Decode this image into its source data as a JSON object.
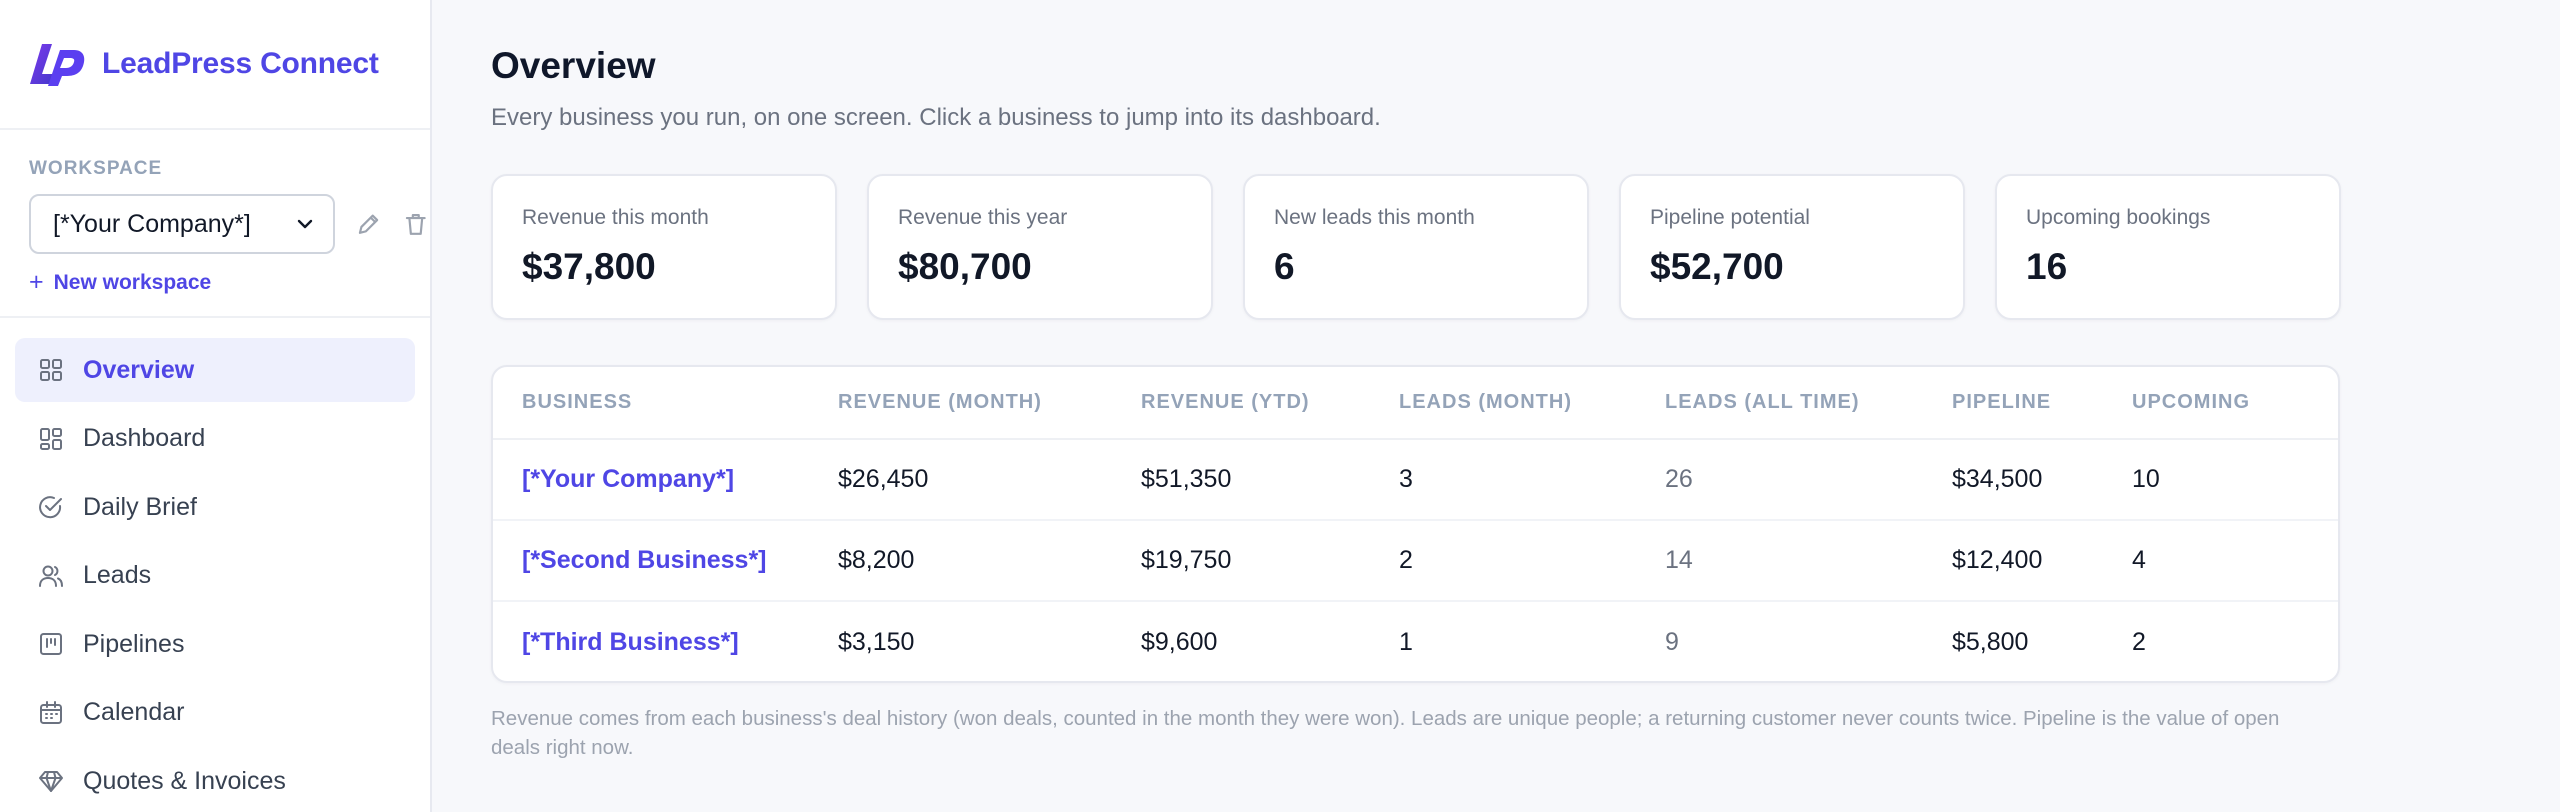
{
  "brand": {
    "name": "LeadPress Connect"
  },
  "workspace": {
    "label": "WORKSPACE",
    "selected": "[*Your Company*]",
    "new_label": "New workspace"
  },
  "nav": {
    "items": [
      {
        "label": "Overview",
        "icon": "grid-icon",
        "active": true
      },
      {
        "label": "Dashboard",
        "icon": "dashboard-icon"
      },
      {
        "label": "Daily Brief",
        "icon": "check-circle-icon"
      },
      {
        "label": "Leads",
        "icon": "users-icon"
      },
      {
        "label": "Pipelines",
        "icon": "kanban-icon"
      },
      {
        "label": "Calendar",
        "icon": "calendar-icon"
      },
      {
        "label": "Quotes & Invoices",
        "icon": "gem-icon"
      }
    ]
  },
  "page": {
    "title": "Overview",
    "subtitle": "Every business you run, on one screen. Click a business to jump into its dashboard."
  },
  "stats": [
    {
      "label": "Revenue this month",
      "value": "$37,800"
    },
    {
      "label": "Revenue this year",
      "value": "$80,700"
    },
    {
      "label": "New leads this month",
      "value": "6"
    },
    {
      "label": "Pipeline potential",
      "value": "$52,700"
    },
    {
      "label": "Upcoming bookings",
      "value": "16"
    }
  ],
  "table": {
    "columns": [
      "Business",
      "Revenue (month)",
      "Revenue (YTD)",
      "Leads (month)",
      "Leads (all time)",
      "Pipeline",
      "Upcoming"
    ],
    "rows": [
      [
        "[*Your Company*]",
        "$26,450",
        "$51,350",
        "3",
        "26",
        "$34,500",
        "10"
      ],
      [
        "[*Second Business*]",
        "$8,200",
        "$19,750",
        "2",
        "14",
        "$12,400",
        "4"
      ],
      [
        "[*Third Business*]",
        "$3,150",
        "$9,600",
        "1",
        "9",
        "$5,800",
        "2"
      ]
    ]
  },
  "footnote": "Revenue comes from each business's deal history (won deals, counted in the month they were won). Leads are unique people; a returning customer never counts twice. Pipeline is the value of open deals right now.",
  "colors": {
    "accent": "#4f46e5",
    "muted": "#6b7280",
    "header": "#94a3b8"
  }
}
